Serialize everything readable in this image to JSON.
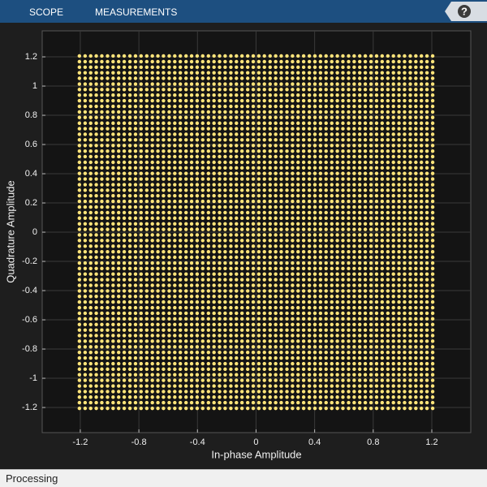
{
  "toolbar": {
    "tabs": [
      "SCOPE",
      "MEASUREMENTS"
    ],
    "help": "?"
  },
  "status": "Processing",
  "chart_data": {
    "type": "constellation",
    "x_label": "In-phase Amplitude",
    "y_label": "Quadrature Amplitude",
    "x": [
      -1.206,
      -1.167,
      -1.129,
      -1.091,
      -1.053,
      -1.014,
      -0.976,
      -0.938,
      -0.9,
      -0.861,
      -0.823,
      -0.785,
      -0.746,
      -0.708,
      -0.67,
      -0.632,
      -0.593,
      -0.555,
      -0.517,
      -0.478,
      -0.44,
      -0.402,
      -0.364,
      -0.325,
      -0.287,
      -0.249,
      -0.211,
      -0.172,
      -0.134,
      -0.096,
      -0.057,
      -0.019,
      0.019,
      0.057,
      0.096,
      0.134,
      0.172,
      0.211,
      0.249,
      0.287,
      0.325,
      0.364,
      0.402,
      0.44,
      0.478,
      0.517,
      0.555,
      0.593,
      0.632,
      0.67,
      0.708,
      0.746,
      0.785,
      0.823,
      0.861,
      0.9,
      0.938,
      0.976,
      1.014,
      1.053,
      1.091,
      1.129,
      1.167,
      1.206
    ],
    "y": [
      -1.206,
      -1.167,
      -1.129,
      -1.091,
      -1.053,
      -1.014,
      -0.976,
      -0.938,
      -0.9,
      -0.861,
      -0.823,
      -0.785,
      -0.746,
      -0.708,
      -0.67,
      -0.632,
      -0.593,
      -0.555,
      -0.517,
      -0.478,
      -0.44,
      -0.402,
      -0.364,
      -0.325,
      -0.287,
      -0.249,
      -0.211,
      -0.172,
      -0.134,
      -0.096,
      -0.057,
      -0.019,
      0.019,
      0.057,
      0.096,
      0.134,
      0.172,
      0.211,
      0.249,
      0.287,
      0.325,
      0.364,
      0.402,
      0.44,
      0.478,
      0.517,
      0.555,
      0.593,
      0.632,
      0.67,
      0.708,
      0.746,
      0.785,
      0.823,
      0.861,
      0.9,
      0.938,
      0.976,
      1.014,
      1.053,
      1.091,
      1.129,
      1.167,
      1.206
    ],
    "color": "#ffe47a",
    "xlim": [
      -1.46,
      1.466
    ],
    "ylim": [
      -1.372,
      1.378
    ],
    "xticks": [
      -1.2,
      -0.8,
      -0.4,
      0,
      0.4,
      0.8,
      1.2
    ],
    "yticks": [
      -1.2,
      -1,
      -0.8,
      -0.6,
      -0.4,
      -0.2,
      0,
      0.2,
      0.4,
      0.6,
      0.8,
      1,
      1.2
    ],
    "grid": true
  }
}
